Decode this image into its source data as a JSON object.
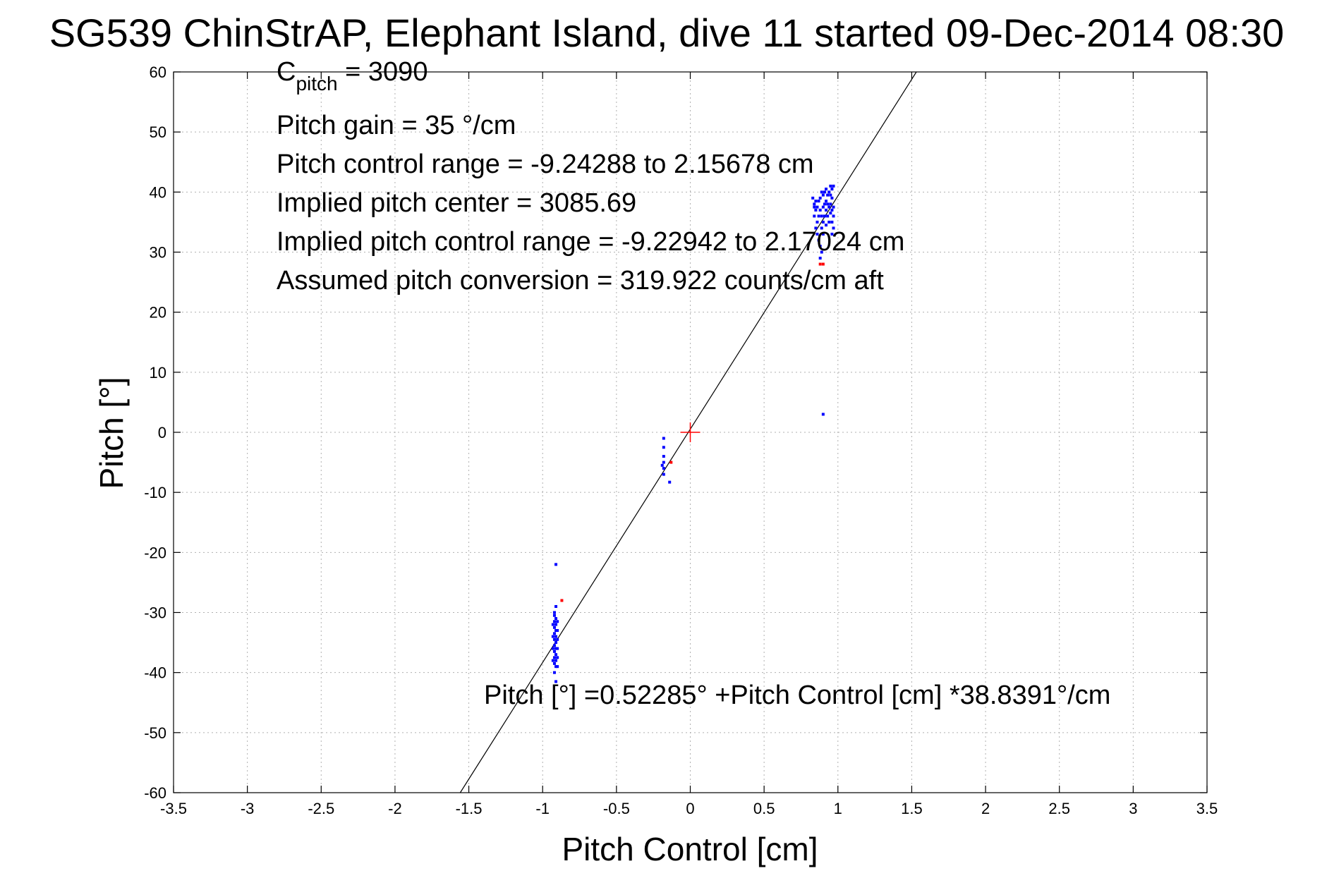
{
  "chart_data": {
    "type": "scatter",
    "title": "SG539 ChinStrAP, Elephant Island, dive 11 started 09-Dec-2014 08:30",
    "xlabel": "Pitch Control [cm]",
    "ylabel": "Pitch [°]",
    "xlim": [
      -3.5,
      3.5
    ],
    "ylim": [
      -60,
      60
    ],
    "xticks": [
      -3.5,
      -3,
      -2.5,
      -2,
      -1.5,
      -1,
      -0.5,
      0,
      0.5,
      1,
      1.5,
      2,
      2.5,
      3,
      3.5
    ],
    "yticks": [
      -60,
      -50,
      -40,
      -30,
      -20,
      -10,
      0,
      10,
      20,
      30,
      40,
      50,
      60
    ],
    "xtick_labels": [
      "-3.5",
      "-3",
      "-2.5",
      "-2",
      "-1.5",
      "-1",
      "-0.5",
      "0",
      "0.5",
      "1",
      "1.5",
      "2",
      "2.5",
      "3",
      "3.5"
    ],
    "ytick_labels": [
      "-60",
      "-50",
      "-40",
      "-30",
      "-20",
      "-10",
      "0",
      "10",
      "20",
      "30",
      "40",
      "50",
      "60"
    ],
    "grid": true,
    "fit_line": {
      "intercept": 0.52285,
      "slope": 38.8391
    },
    "center_marker": {
      "x": 0,
      "y": 0,
      "color": "#ff0000"
    },
    "annotations": {
      "c_pitch_main": "C",
      "c_pitch_sub": "pitch",
      "c_pitch_value": " = 3090",
      "pitch_gain": "Pitch gain = 35 °/cm",
      "pitch_control_range": "Pitch control range = -9.24288 to 2.15678 cm",
      "implied_pitch_center": "Implied pitch center = 3085.69",
      "implied_pitch_control_range": "Implied pitch control range = -9.22942 to 2.17024 cm",
      "assumed_pitch_conversion": "Assumed pitch conversion = 319.922 counts/cm aft",
      "fit_equation": "Pitch [°] =0.52285° +Pitch Control [cm] *38.8391°/cm"
    },
    "series": [
      {
        "color": "#0000ff",
        "points": [
          [
            -0.91,
            -22
          ],
          [
            -0.91,
            -29
          ],
          [
            -0.92,
            -30
          ],
          [
            -0.92,
            -30.5
          ],
          [
            -0.91,
            -31
          ],
          [
            -0.92,
            -31.5
          ],
          [
            -0.91,
            -32
          ],
          [
            -0.92,
            -32.5
          ],
          [
            -0.91,
            -33
          ],
          [
            -0.92,
            -33.5
          ],
          [
            -0.91,
            -34
          ],
          [
            -0.92,
            -34.5
          ],
          [
            -0.91,
            -35
          ],
          [
            -0.92,
            -35.5
          ],
          [
            -0.91,
            -36
          ],
          [
            -0.92,
            -36.5
          ],
          [
            -0.91,
            -37
          ],
          [
            -0.92,
            -37.5
          ],
          [
            -0.91,
            -38
          ],
          [
            -0.92,
            -38.5
          ],
          [
            -0.91,
            -39
          ],
          [
            -0.92,
            -40
          ],
          [
            -0.91,
            -41.5
          ],
          [
            -0.9,
            -31.5
          ],
          [
            -0.9,
            -33
          ],
          [
            -0.9,
            -34.5
          ],
          [
            -0.9,
            -36
          ],
          [
            -0.9,
            -37.5
          ],
          [
            -0.9,
            -39
          ],
          [
            -0.93,
            -32
          ],
          [
            -0.93,
            -34
          ],
          [
            -0.93,
            -36
          ],
          [
            -0.93,
            -38
          ],
          [
            -0.18,
            -1
          ],
          [
            -0.18,
            -2.5
          ],
          [
            -0.18,
            -4
          ],
          [
            -0.18,
            -5
          ],
          [
            -0.19,
            -5.5
          ],
          [
            -0.18,
            -6
          ],
          [
            -0.18,
            -7
          ],
          [
            -0.14,
            -8.3
          ],
          [
            0.9,
            3
          ],
          [
            0.83,
            39
          ],
          [
            0.84,
            38
          ],
          [
            0.85,
            37
          ],
          [
            0.84,
            36
          ],
          [
            0.86,
            35
          ],
          [
            0.85,
            34
          ],
          [
            0.86,
            33
          ],
          [
            0.87,
            32
          ],
          [
            0.88,
            31
          ],
          [
            0.89,
            30
          ],
          [
            0.88,
            29
          ],
          [
            0.87,
            38.5
          ],
          [
            0.88,
            39
          ],
          [
            0.89,
            40
          ],
          [
            0.9,
            39.5
          ],
          [
            0.91,
            40
          ],
          [
            0.92,
            40.5
          ],
          [
            0.93,
            39.5
          ],
          [
            0.94,
            40
          ],
          [
            0.95,
            41
          ],
          [
            0.96,
            40.5
          ],
          [
            0.97,
            41
          ],
          [
            0.96,
            39
          ],
          [
            0.95,
            38
          ],
          [
            0.96,
            37
          ],
          [
            0.97,
            36
          ],
          [
            0.96,
            35
          ],
          [
            0.97,
            34
          ],
          [
            0.96,
            33
          ],
          [
            0.95,
            36.5
          ],
          [
            0.94,
            35
          ],
          [
            0.93,
            36
          ],
          [
            0.92,
            37
          ],
          [
            0.91,
            36
          ],
          [
            0.9,
            35
          ],
          [
            0.89,
            36
          ],
          [
            0.88,
            37
          ],
          [
            0.87,
            36
          ],
          [
            0.86,
            37.5
          ],
          [
            0.85,
            38.5
          ],
          [
            0.84,
            37.5
          ],
          [
            0.93,
            38
          ],
          [
            0.92,
            38.5
          ],
          [
            0.94,
            37.5
          ],
          [
            0.95,
            39.5
          ],
          [
            0.9,
            37.5
          ],
          [
            0.91,
            38
          ],
          [
            0.89,
            34
          ],
          [
            0.9,
            33
          ],
          [
            0.92,
            34.5
          ],
          [
            0.97,
            37.5
          ]
        ]
      },
      {
        "color": "#ff0000",
        "points": [
          [
            -0.87,
            -28
          ],
          [
            -0.13,
            -5
          ],
          [
            0.88,
            28
          ],
          [
            0.9,
            28
          ]
        ]
      }
    ]
  }
}
